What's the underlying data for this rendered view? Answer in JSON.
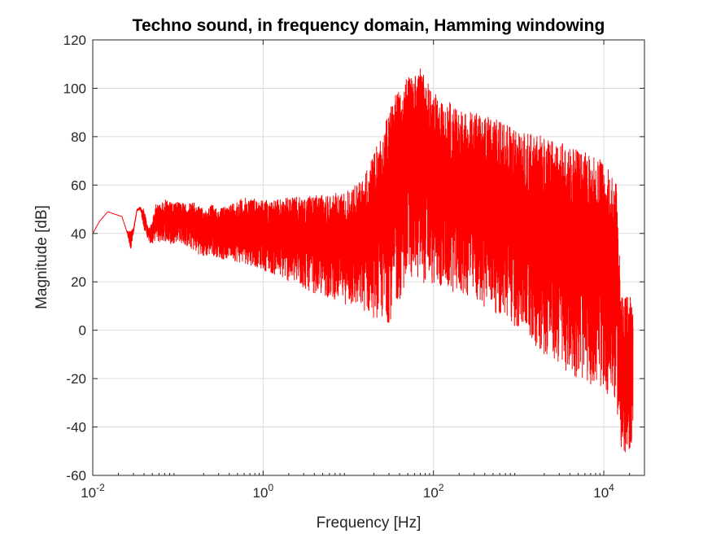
{
  "chart_data": {
    "type": "line",
    "title": "Techno sound, in frequency domain, Hamming windowing",
    "xlabel": "Frequency [Hz]",
    "ylabel": "Magnitude [dB]",
    "xscale": "log",
    "xlim": [
      0.01,
      30000
    ],
    "ylim": [
      -60,
      120
    ],
    "x_ticks": [
      {
        "value": 0.01,
        "base": "10",
        "exp": "-2"
      },
      {
        "value": 1,
        "base": "10",
        "exp": "0"
      },
      {
        "value": 100,
        "base": "10",
        "exp": "2"
      },
      {
        "value": 10000,
        "base": "10",
        "exp": "4"
      }
    ],
    "y_ticks": [
      -60,
      -40,
      -20,
      0,
      20,
      40,
      60,
      80,
      100,
      120
    ],
    "grid": true,
    "line_color": "#ff0000",
    "series": [
      {
        "x": [
          0.01,
          0.012,
          0.015,
          0.018,
          0.022,
          0.025,
          0.028,
          0.03,
          0.033,
          0.036,
          0.04,
          0.045,
          0.05,
          0.055,
          0.06,
          0.07,
          0.08,
          0.09,
          0.1,
          0.12,
          0.15,
          0.2,
          0.25,
          0.3,
          0.35,
          0.4,
          0.5,
          0.7,
          1,
          1.5,
          2,
          3,
          5,
          8,
          10,
          15,
          20,
          30,
          40,
          50,
          70,
          100,
          200,
          500,
          1000,
          2000,
          3000,
          5000,
          10000,
          14000,
          16000,
          17000,
          18000,
          20000,
          22000
        ],
        "upper": [
          40,
          45,
          49,
          48,
          47,
          41,
          41,
          42,
          50,
          51,
          50,
          42,
          45,
          53,
          52,
          54,
          53,
          52,
          54,
          52,
          53,
          50,
          52,
          50,
          51,
          52,
          54,
          55,
          54,
          54,
          55,
          55,
          56,
          57,
          58,
          63,
          73,
          90,
          106,
          104,
          110,
          98,
          92,
          88,
          82,
          80,
          78,
          75,
          70,
          61,
          15,
          13,
          14,
          14,
          13
        ],
        "lower": [
          40,
          45,
          49,
          48,
          47,
          41,
          33,
          40,
          49,
          50,
          42,
          37,
          35,
          38,
          36,
          37,
          35,
          36,
          37,
          35,
          33,
          30,
          31,
          30,
          29,
          30,
          28,
          27,
          25,
          22,
          20,
          17,
          14,
          12,
          10,
          8,
          5,
          3,
          12,
          22,
          20,
          18,
          15,
          8,
          0,
          -10,
          -15,
          -20,
          -25,
          -30,
          -50,
          -55,
          -56,
          -50,
          -45
        ]
      }
    ]
  }
}
